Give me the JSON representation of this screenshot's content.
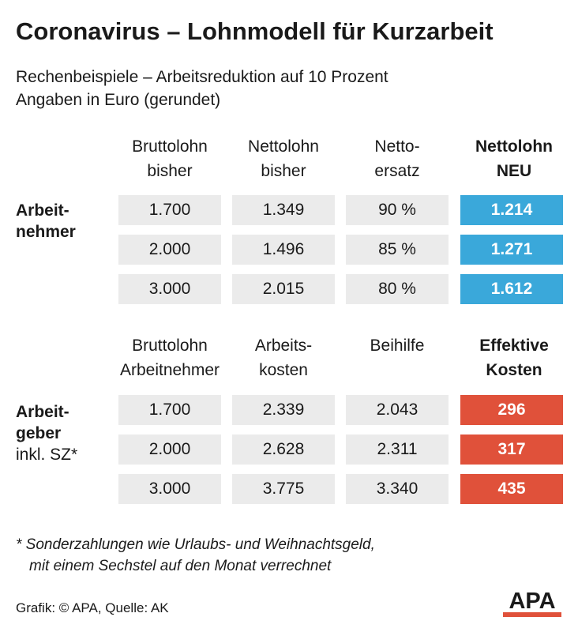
{
  "header": {
    "title": "Coronavirus – Lohnmodell für Kurzarbeit",
    "subtitle_line1": "Rechenbeispiele – Arbeitsreduktion auf 10 Prozent",
    "subtitle_line2": "Angaben in Euro (gerundet)"
  },
  "colors": {
    "accent_blue": "#3aa8da",
    "accent_red": "#e0513a",
    "cell_bg": "#ebebeb"
  },
  "chart_data": [
    {
      "type": "table",
      "row_group_label": [
        "Arbeit-",
        "nehmer"
      ],
      "columns": [
        [
          "Bruttolohn",
          "bisher"
        ],
        [
          "Nettolohn",
          "bisher"
        ],
        [
          "Netto-",
          "ersatz"
        ],
        [
          "Nettolohn",
          "NEU"
        ]
      ],
      "rows": [
        [
          "1.700",
          "1.349",
          "90 %",
          "1.214"
        ],
        [
          "2.000",
          "1.496",
          "85 %",
          "1.271"
        ],
        [
          "3.000",
          "2.015",
          "80 %",
          "1.612"
        ]
      ]
    },
    {
      "type": "table",
      "row_group_label": [
        "Arbeit-",
        "geber",
        "inkl. SZ*"
      ],
      "columns": [
        [
          "Bruttolohn",
          "Arbeitnehmer"
        ],
        [
          "Arbeits-",
          "kosten"
        ],
        [
          "Beihilfe",
          ""
        ],
        [
          "Effektive",
          "Kosten"
        ]
      ],
      "rows": [
        [
          "1.700",
          "2.339",
          "2.043",
          "296"
        ],
        [
          "2.000",
          "2.628",
          "2.311",
          "317"
        ],
        [
          "3.000",
          "3.775",
          "3.340",
          "435"
        ]
      ]
    }
  ],
  "footnote": {
    "line1": "* Sonderzahlungen wie Urlaubs- und Weihnachtsgeld,",
    "line2": "mit einem Sechstel auf den Monat verrechnet"
  },
  "credit": "Grafik: © APA, Quelle: AK",
  "logo": {
    "text": "APA",
    "icon": "apa-logo-icon"
  }
}
